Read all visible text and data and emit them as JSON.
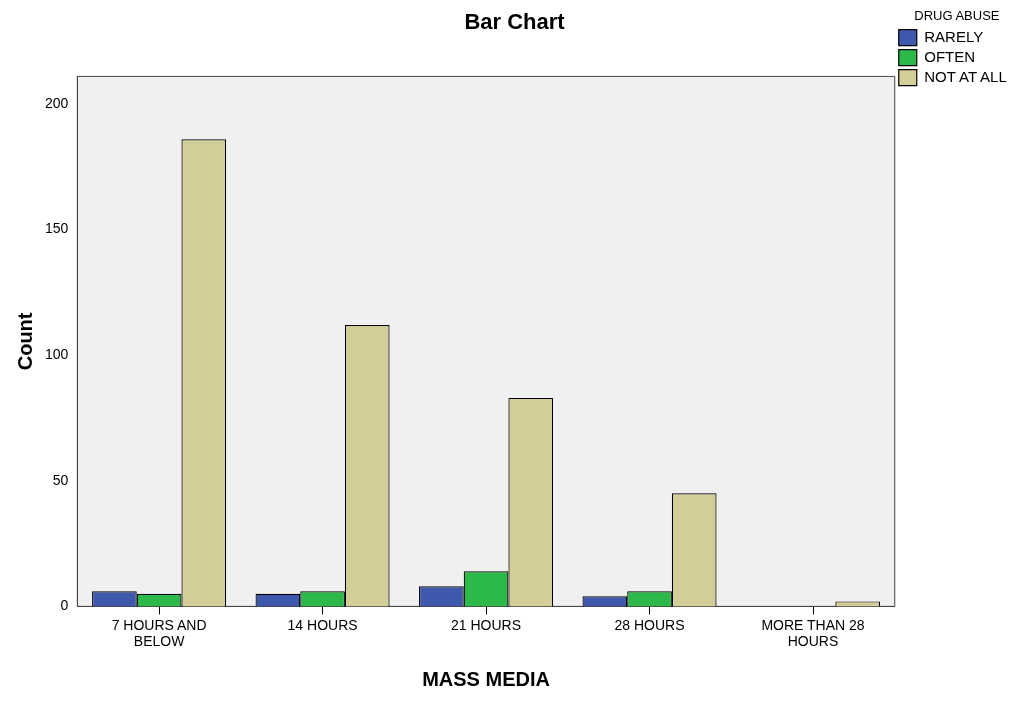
{
  "chart_data": {
    "type": "bar",
    "title": "Bar Chart",
    "xlabel": "MASS MEDIA",
    "ylabel": "Count",
    "legend_title": "DRUG ABUSE",
    "categories": [
      "7 HOURS AND BELOW",
      "14 HOURS",
      "21 HOURS",
      "28 HOURS",
      "MORE THAN 28 HOURS"
    ],
    "series": [
      {
        "name": "RARELY",
        "color": "#3e58ac",
        "values": [
          6,
          5,
          8,
          4,
          0
        ]
      },
      {
        "name": "OFTEN",
        "color": "#2db84a",
        "values": [
          5,
          6,
          14,
          6,
          0
        ]
      },
      {
        "name": "NOT AT ALL",
        "color": "#d3ce97",
        "values": [
          186,
          112,
          83,
          45,
          2
        ]
      }
    ],
    "ylim": [
      0,
      211
    ],
    "yticks": [
      0,
      50,
      100,
      150,
      200
    ],
    "grid": false,
    "legend": "top right"
  }
}
